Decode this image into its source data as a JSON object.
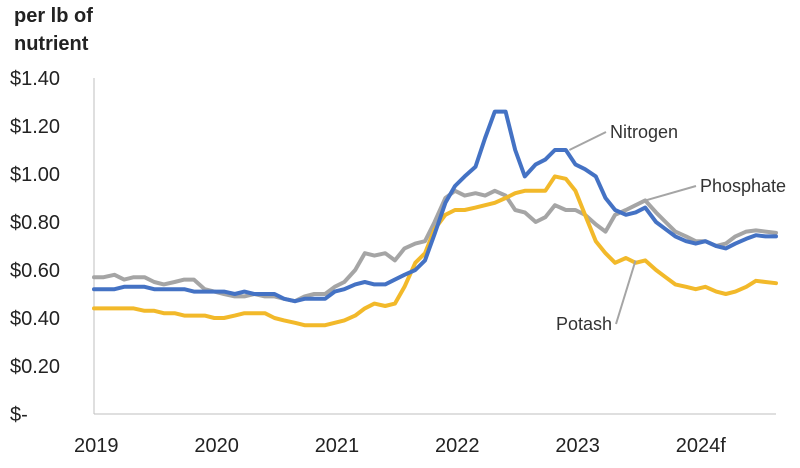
{
  "chart_data": {
    "type": "line",
    "title": "",
    "ylabel_lines": [
      "per lb of",
      "nutrient"
    ],
    "xlabel": "",
    "ylim": [
      0,
      1.4
    ],
    "xlim": [
      2019,
      2024.667
    ],
    "grid": false,
    "legend": "inline labels with leader lines",
    "y_ticks": [
      {
        "value": 1.4,
        "label": "$1.40"
      },
      {
        "value": 1.2,
        "label": "$1.20"
      },
      {
        "value": 1.0,
        "label": "$1.00"
      },
      {
        "value": 0.8,
        "label": "$0.80"
      },
      {
        "value": 0.6,
        "label": "$0.60"
      },
      {
        "value": 0.4,
        "label": "$0.40"
      },
      {
        "value": 0.2,
        "label": "$0.20"
      },
      {
        "value": 0.0,
        "label": "$-"
      }
    ],
    "x_ticks": [
      {
        "value": 2019,
        "label": "2019"
      },
      {
        "value": 2020,
        "label": "2020"
      },
      {
        "value": 2021,
        "label": "2021"
      },
      {
        "value": 2022,
        "label": "2022"
      },
      {
        "value": 2023,
        "label": "2023"
      },
      {
        "value": 2024,
        "label": "2024f"
      }
    ],
    "series": [
      {
        "name": "Phosphate",
        "color": "#a5a5a5",
        "label_anchor": [
          2023.55,
          0.885
        ],
        "points": [
          [
            2019.0,
            0.57
          ],
          [
            2019.08,
            0.57
          ],
          [
            2019.17,
            0.58
          ],
          [
            2019.25,
            0.56
          ],
          [
            2019.33,
            0.57
          ],
          [
            2019.42,
            0.57
          ],
          [
            2019.5,
            0.55
          ],
          [
            2019.58,
            0.54
          ],
          [
            2019.67,
            0.55
          ],
          [
            2019.75,
            0.56
          ],
          [
            2019.83,
            0.56
          ],
          [
            2019.92,
            0.52
          ],
          [
            2020.0,
            0.51
          ],
          [
            2020.08,
            0.5
          ],
          [
            2020.17,
            0.49
          ],
          [
            2020.25,
            0.49
          ],
          [
            2020.33,
            0.5
          ],
          [
            2020.42,
            0.49
          ],
          [
            2020.5,
            0.49
          ],
          [
            2020.58,
            0.48
          ],
          [
            2020.67,
            0.47
          ],
          [
            2020.75,
            0.49
          ],
          [
            2020.83,
            0.5
          ],
          [
            2020.92,
            0.5
          ],
          [
            2021.0,
            0.53
          ],
          [
            2021.08,
            0.55
          ],
          [
            2021.17,
            0.6
          ],
          [
            2021.25,
            0.67
          ],
          [
            2021.33,
            0.66
          ],
          [
            2021.42,
            0.67
          ],
          [
            2021.5,
            0.64
          ],
          [
            2021.58,
            0.69
          ],
          [
            2021.67,
            0.71
          ],
          [
            2021.75,
            0.72
          ],
          [
            2021.83,
            0.8
          ],
          [
            2021.92,
            0.9
          ],
          [
            2022.0,
            0.93
          ],
          [
            2022.08,
            0.91
          ],
          [
            2022.17,
            0.92
          ],
          [
            2022.25,
            0.91
          ],
          [
            2022.33,
            0.93
          ],
          [
            2022.42,
            0.91
          ],
          [
            2022.5,
            0.85
          ],
          [
            2022.58,
            0.84
          ],
          [
            2022.67,
            0.8
          ],
          [
            2022.75,
            0.82
          ],
          [
            2022.83,
            0.87
          ],
          [
            2022.92,
            0.85
          ],
          [
            2023.0,
            0.85
          ],
          [
            2023.08,
            0.83
          ],
          [
            2023.17,
            0.79
          ],
          [
            2023.25,
            0.76
          ],
          [
            2023.33,
            0.83
          ],
          [
            2023.42,
            0.85
          ],
          [
            2023.5,
            0.87
          ],
          [
            2023.58,
            0.89
          ],
          [
            2023.67,
            0.84
          ],
          [
            2023.75,
            0.8
          ],
          [
            2023.83,
            0.76
          ],
          [
            2023.92,
            0.74
          ],
          [
            2024.0,
            0.72
          ],
          [
            2024.08,
            0.72
          ],
          [
            2024.17,
            0.7
          ],
          [
            2024.25,
            0.71
          ],
          [
            2024.33,
            0.74
          ],
          [
            2024.42,
            0.76
          ],
          [
            2024.5,
            0.765
          ],
          [
            2024.58,
            0.76
          ],
          [
            2024.667,
            0.755
          ]
        ]
      },
      {
        "name": "Potash",
        "color": "#f2b92a",
        "label_anchor": [
          2023.5,
          0.64
        ],
        "points": [
          [
            2019.0,
            0.44
          ],
          [
            2019.08,
            0.44
          ],
          [
            2019.17,
            0.44
          ],
          [
            2019.25,
            0.44
          ],
          [
            2019.33,
            0.44
          ],
          [
            2019.42,
            0.43
          ],
          [
            2019.5,
            0.43
          ],
          [
            2019.58,
            0.42
          ],
          [
            2019.67,
            0.42
          ],
          [
            2019.75,
            0.41
          ],
          [
            2019.83,
            0.41
          ],
          [
            2019.92,
            0.41
          ],
          [
            2020.0,
            0.4
          ],
          [
            2020.08,
            0.4
          ],
          [
            2020.17,
            0.41
          ],
          [
            2020.25,
            0.42
          ],
          [
            2020.33,
            0.42
          ],
          [
            2020.42,
            0.42
          ],
          [
            2020.5,
            0.4
          ],
          [
            2020.58,
            0.39
          ],
          [
            2020.67,
            0.38
          ],
          [
            2020.75,
            0.37
          ],
          [
            2020.83,
            0.37
          ],
          [
            2020.92,
            0.37
          ],
          [
            2021.0,
            0.38
          ],
          [
            2021.08,
            0.39
          ],
          [
            2021.17,
            0.41
          ],
          [
            2021.25,
            0.44
          ],
          [
            2021.33,
            0.46
          ],
          [
            2021.42,
            0.45
          ],
          [
            2021.5,
            0.46
          ],
          [
            2021.58,
            0.53
          ],
          [
            2021.67,
            0.63
          ],
          [
            2021.75,
            0.67
          ],
          [
            2021.83,
            0.77
          ],
          [
            2021.92,
            0.83
          ],
          [
            2022.0,
            0.85
          ],
          [
            2022.08,
            0.85
          ],
          [
            2022.17,
            0.86
          ],
          [
            2022.25,
            0.87
          ],
          [
            2022.33,
            0.88
          ],
          [
            2022.42,
            0.9
          ],
          [
            2022.5,
            0.92
          ],
          [
            2022.58,
            0.93
          ],
          [
            2022.67,
            0.93
          ],
          [
            2022.75,
            0.93
          ],
          [
            2022.83,
            0.99
          ],
          [
            2022.92,
            0.98
          ],
          [
            2023.0,
            0.93
          ],
          [
            2023.08,
            0.83
          ],
          [
            2023.17,
            0.72
          ],
          [
            2023.25,
            0.67
          ],
          [
            2023.33,
            0.63
          ],
          [
            2023.42,
            0.65
          ],
          [
            2023.5,
            0.63
          ],
          [
            2023.58,
            0.64
          ],
          [
            2023.67,
            0.6
          ],
          [
            2023.75,
            0.57
          ],
          [
            2023.83,
            0.54
          ],
          [
            2023.92,
            0.53
          ],
          [
            2024.0,
            0.52
          ],
          [
            2024.08,
            0.53
          ],
          [
            2024.17,
            0.51
          ],
          [
            2024.25,
            0.5
          ],
          [
            2024.33,
            0.51
          ],
          [
            2024.42,
            0.53
          ],
          [
            2024.5,
            0.555
          ],
          [
            2024.58,
            0.55
          ],
          [
            2024.667,
            0.545
          ]
        ]
      },
      {
        "name": "Nitrogen",
        "color": "#4472c4",
        "label_anchor": [
          2022.95,
          1.1
        ],
        "points": [
          [
            2019.0,
            0.52
          ],
          [
            2019.08,
            0.52
          ],
          [
            2019.17,
            0.52
          ],
          [
            2019.25,
            0.53
          ],
          [
            2019.33,
            0.53
          ],
          [
            2019.42,
            0.53
          ],
          [
            2019.5,
            0.52
          ],
          [
            2019.58,
            0.52
          ],
          [
            2019.67,
            0.52
          ],
          [
            2019.75,
            0.52
          ],
          [
            2019.83,
            0.51
          ],
          [
            2019.92,
            0.51
          ],
          [
            2020.0,
            0.51
          ],
          [
            2020.08,
            0.51
          ],
          [
            2020.17,
            0.5
          ],
          [
            2020.25,
            0.51
          ],
          [
            2020.33,
            0.5
          ],
          [
            2020.42,
            0.5
          ],
          [
            2020.5,
            0.5
          ],
          [
            2020.58,
            0.48
          ],
          [
            2020.67,
            0.47
          ],
          [
            2020.75,
            0.48
          ],
          [
            2020.83,
            0.48
          ],
          [
            2020.92,
            0.48
          ],
          [
            2021.0,
            0.51
          ],
          [
            2021.08,
            0.52
          ],
          [
            2021.17,
            0.54
          ],
          [
            2021.25,
            0.55
          ],
          [
            2021.33,
            0.54
          ],
          [
            2021.42,
            0.54
          ],
          [
            2021.5,
            0.56
          ],
          [
            2021.58,
            0.58
          ],
          [
            2021.67,
            0.6
          ],
          [
            2021.75,
            0.64
          ],
          [
            2021.83,
            0.75
          ],
          [
            2021.92,
            0.88
          ],
          [
            2022.0,
            0.95
          ],
          [
            2022.08,
            0.99
          ],
          [
            2022.17,
            1.03
          ],
          [
            2022.25,
            1.15
          ],
          [
            2022.33,
            1.26
          ],
          [
            2022.42,
            1.26
          ],
          [
            2022.5,
            1.1
          ],
          [
            2022.58,
            0.99
          ],
          [
            2022.67,
            1.04
          ],
          [
            2022.75,
            1.06
          ],
          [
            2022.83,
            1.1
          ],
          [
            2022.92,
            1.1
          ],
          [
            2023.0,
            1.04
          ],
          [
            2023.08,
            1.02
          ],
          [
            2023.17,
            0.99
          ],
          [
            2023.25,
            0.9
          ],
          [
            2023.33,
            0.85
          ],
          [
            2023.42,
            0.83
          ],
          [
            2023.5,
            0.84
          ],
          [
            2023.58,
            0.86
          ],
          [
            2023.67,
            0.8
          ],
          [
            2023.75,
            0.77
          ],
          [
            2023.83,
            0.74
          ],
          [
            2023.92,
            0.72
          ],
          [
            2024.0,
            0.71
          ],
          [
            2024.08,
            0.72
          ],
          [
            2024.17,
            0.7
          ],
          [
            2024.25,
            0.69
          ],
          [
            2024.33,
            0.71
          ],
          [
            2024.42,
            0.73
          ],
          [
            2024.5,
            0.745
          ],
          [
            2024.58,
            0.74
          ],
          [
            2024.667,
            0.74
          ]
        ]
      }
    ]
  }
}
